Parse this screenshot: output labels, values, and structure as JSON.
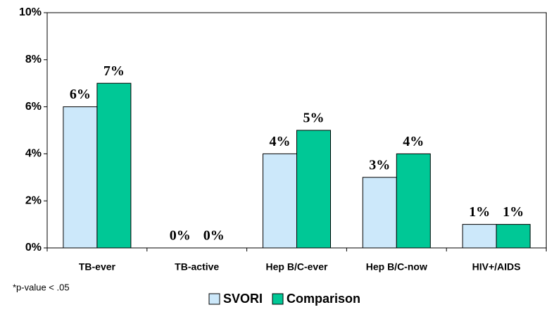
{
  "chart_data": {
    "type": "bar",
    "categories": [
      "TB-ever",
      "TB-active",
      "Hep B/C-ever",
      "Hep B/C-now",
      "HIV+/AIDS"
    ],
    "series": [
      {
        "name": "SVORI",
        "color": "#cce8fa",
        "values": [
          6,
          0,
          4,
          3,
          1
        ],
        "value_labels": [
          "6%",
          "0%",
          "4%",
          "3%",
          "1%"
        ]
      },
      {
        "name": "Comparison",
        "color": "#00c896",
        "values": [
          7,
          0,
          5,
          4,
          1
        ],
        "value_labels": [
          "7%",
          "0%",
          "5%",
          "4%",
          "1%"
        ]
      }
    ],
    "ylim": [
      0,
      10
    ],
    "yticks": [
      {
        "value": 0,
        "label": "0%"
      },
      {
        "value": 2,
        "label": "2%"
      },
      {
        "value": 4,
        "label": "4%"
      },
      {
        "value": 6,
        "label": "6%"
      },
      {
        "value": 8,
        "label": "8%"
      },
      {
        "value": 10,
        "label": "10%"
      }
    ],
    "annotation": "*p-value < .05",
    "legend": "bottom"
  }
}
